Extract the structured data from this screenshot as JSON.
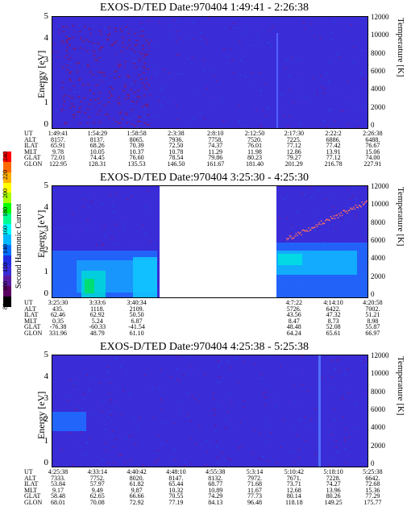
{
  "panels": [
    {
      "title": "EXOS-D/TED   Date:970404   1:49:41 - 2:26:38",
      "ylabel_left": "Energy [eV]",
      "ylabel_right": "Temperature [K]",
      "y_ticks_left": [
        "5",
        "4",
        "3",
        "2",
        "1",
        "0"
      ],
      "y_ticks_right": [
        "12000",
        "10000",
        "8000",
        "6000",
        "4000",
        "2000",
        "0"
      ],
      "rows": [
        {
          "label": "UT",
          "values": [
            "1:49:41",
            "1:54:29",
            "1:58:58",
            "2:3:38",
            "2:8:10",
            "2:12:50",
            "2:17:30",
            "2:22:2",
            "2:26:38"
          ]
        },
        {
          "label": "ALT",
          "values": [
            "8157.",
            "8137.",
            "8065.",
            "7936.",
            "7758.",
            "7520.",
            "7225.",
            "6886.",
            "6488."
          ]
        },
        {
          "label": "ILAT",
          "values": [
            "65.91",
            "68.26",
            "70.39",
            "72.50",
            "74.37",
            "76.01",
            "77.12",
            "77.42",
            "76.67"
          ]
        },
        {
          "label": "MLT",
          "values": [
            "9.78",
            "10.05",
            "10.37",
            "10.78",
            "11.29",
            "11.98",
            "12.86",
            "13.91",
            "15.06"
          ]
        },
        {
          "label": "GLAT",
          "values": [
            "72.01",
            "74.45",
            "76.60",
            "78.54",
            "79.86",
            "80.23",
            "79.27",
            "77.12",
            "74.00"
          ]
        },
        {
          "label": "GLON",
          "values": [
            "122.95",
            "128.31",
            "135.53",
            "146.50",
            "161.67",
            "181.40",
            "201.29",
            "216.78",
            "227.91"
          ]
        }
      ]
    },
    {
      "title": "EXOS-D/TED   Date:970404   3:25:30 - 4:25:30",
      "ylabel_left": "Energy [eV]",
      "ylabel_right": "Temperature [K]",
      "y_ticks_left": [
        "5",
        "4",
        "3",
        "2",
        "1",
        "0"
      ],
      "y_ticks_right": [
        "12000",
        "10000",
        "8000",
        "6000",
        "4000",
        "2000",
        "0"
      ],
      "rows": [
        {
          "label": "UT",
          "values": [
            "3:25:30",
            "3:33:6",
            "3:40:34",
            "",
            "",
            "",
            "4:7:22",
            "4:14:10",
            "4:20:58"
          ]
        },
        {
          "label": "ALT",
          "values": [
            "435.",
            "1118.",
            "2109.",
            "",
            "",
            "",
            "5726.",
            "6422.",
            "7002."
          ]
        },
        {
          "label": "ILAT",
          "values": [
            "62.46",
            "62.92",
            "50.50",
            "",
            "",
            "",
            "43.56",
            "47.32",
            "51.21"
          ]
        },
        {
          "label": "MLT",
          "values": [
            "0.35",
            "5.24",
            "6.87",
            "",
            "",
            "",
            "8.47",
            "8.73",
            "8.98"
          ]
        },
        {
          "label": "GLAT",
          "values": [
            "-76.38",
            "-60.33",
            "-41.54",
            "",
            "",
            "",
            "48.48",
            "52.08",
            "55.87"
          ]
        },
        {
          "label": "GLON",
          "values": [
            "331.96",
            "48.79",
            "61.10",
            "",
            "",
            "",
            "64.24",
            "65.61",
            "66.97"
          ]
        }
      ]
    },
    {
      "title": "EXOS-D/TED   Date:970404   4:25:38 - 5:25:38",
      "ylabel_left": "Energy [eV]",
      "ylabel_right": "Temperature [K]",
      "y_ticks_left": [
        "5",
        "4",
        "3",
        "2",
        "1",
        "0"
      ],
      "y_ticks_right": [
        "12000",
        "10000",
        "8000",
        "6000",
        "4000",
        "2000",
        "0"
      ],
      "rows": [
        {
          "label": "UT",
          "values": [
            "4:25:38",
            "4:33:14",
            "4:40:42",
            "4:48:10",
            "4:55:38",
            "5:3:14",
            "5:10:42",
            "5:18:10",
            "5:25:38"
          ]
        },
        {
          "label": "ALT",
          "values": [
            "7333.",
            "7752.",
            "8020.",
            "8147.",
            "8132.",
            "7972.",
            "7671.",
            "7228.",
            "6642."
          ]
        },
        {
          "label": "ILAT",
          "values": [
            "53.84",
            "57.97",
            "61.82",
            "65.44",
            "68.77",
            "71.68",
            "73.71",
            "74.27",
            "72.68"
          ]
        },
        {
          "label": "MLT",
          "values": [
            "9.17",
            "9.49",
            "9.87",
            "10.32",
            "10.89",
            "11.67",
            "12.68",
            "13.96",
            "15.36"
          ]
        },
        {
          "label": "GLAT",
          "values": [
            "58.48",
            "62.65",
            "66.66",
            "70.55",
            "74.29",
            "77.73",
            "80.14",
            "80.26",
            "77.29"
          ]
        },
        {
          "label": "GLON",
          "values": [
            "68.01",
            "70.08",
            "72.92",
            "77.19",
            "84.13",
            "96.48",
            "118.18",
            "149.25",
            "175.77"
          ]
        }
      ]
    }
  ],
  "colorbar": {
    "label": "Second Harmonic Current",
    "ticks": [
      "240",
      "220",
      "200",
      "180",
      "160",
      "140",
      "120",
      "100",
      "80"
    ],
    "range": [
      80,
      240
    ],
    "colors": [
      "#ff0000",
      "#ff6a00",
      "#ffb000",
      "#ffff00",
      "#a8ff00",
      "#00ff00",
      "#00ff90",
      "#00ffff",
      "#00b8ff",
      "#0070ff",
      "#1f2ce0",
      "#3a2cd6",
      "#5a1aa0",
      "#5a0060",
      "#000000"
    ]
  },
  "chart_data": [
    {
      "type": "heatmap",
      "title": "EXOS-D/TED   Date:970404   1:49:41 - 2:26:38",
      "xlabel": "UT",
      "ylabel": "Energy [eV]",
      "ylim": [
        0,
        5
      ],
      "y2label": "Temperature [K]",
      "y2lim": [
        0,
        12000
      ]
    },
    {
      "type": "heatmap",
      "title": "EXOS-D/TED   Date:970404   3:25:30 - 4:25:30",
      "xlabel": "UT",
      "ylabel": "Energy [eV]",
      "ylim": [
        0,
        5
      ],
      "y2label": "Temperature [K]",
      "y2lim": [
        0,
        12000
      ]
    },
    {
      "type": "heatmap",
      "title": "EXOS-D/TED   Date:970404   4:25:38 - 5:25:38",
      "xlabel": "UT",
      "ylabel": "Energy [eV]",
      "ylim": [
        0,
        5
      ],
      "y2label": "Temperature [K]",
      "y2lim": [
        0,
        12000
      ]
    }
  ]
}
